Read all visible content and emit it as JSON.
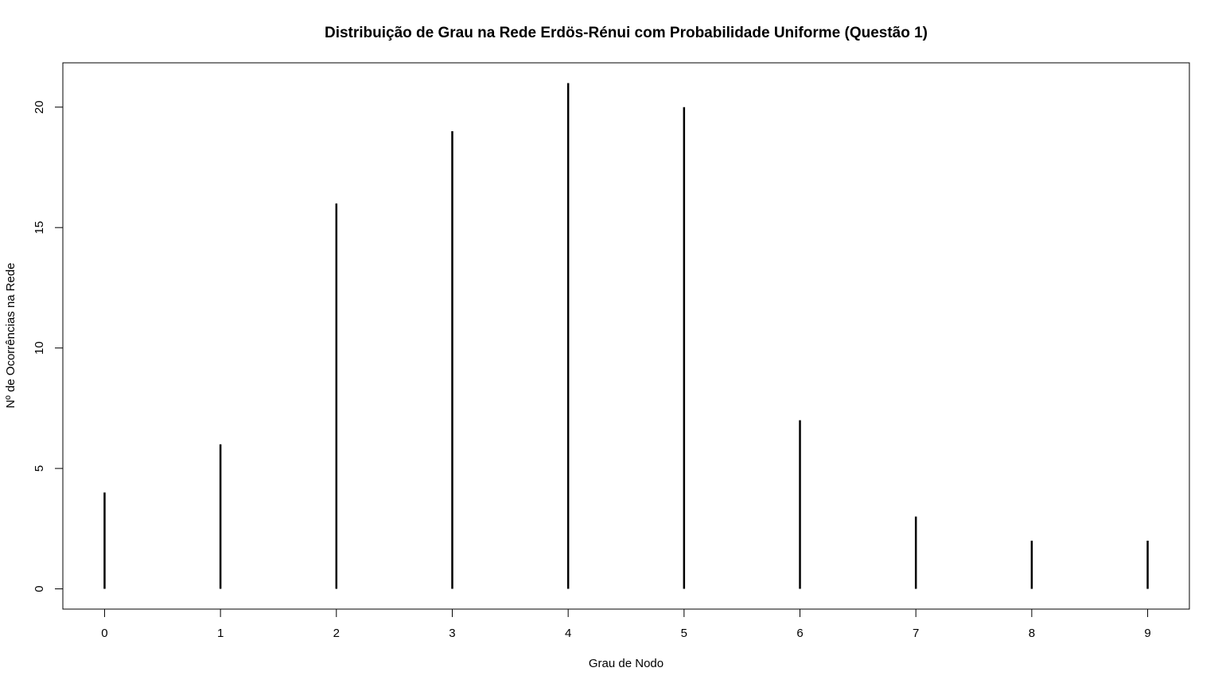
{
  "chart_data": {
    "type": "bar",
    "style": "vertical-lines",
    "title": "Distribuição de Grau na Rede Erdös-Rénui com Probabilidade Uniforme (Questão 1)",
    "xlabel": "Grau de Nodo",
    "ylabel": "Nº de Ocorrências na Rede",
    "categories": [
      "0",
      "1",
      "2",
      "3",
      "4",
      "5",
      "6",
      "7",
      "8",
      "9"
    ],
    "x": [
      0,
      1,
      2,
      3,
      4,
      5,
      6,
      7,
      8,
      9
    ],
    "values": [
      4,
      6,
      16,
      19,
      21,
      20,
      7,
      3,
      2,
      2
    ],
    "xlim": [
      -0.36,
      9.36
    ],
    "ylim": [
      -0.84,
      21.84
    ],
    "xticks": [
      0,
      1,
      2,
      3,
      4,
      5,
      6,
      7,
      8,
      9
    ],
    "yticks": [
      0,
      5,
      10,
      15,
      20
    ],
    "grid": false,
    "legend": "none",
    "colors": {
      "bars": "#000000",
      "frame": "#000000",
      "background": "#ffffff"
    }
  }
}
